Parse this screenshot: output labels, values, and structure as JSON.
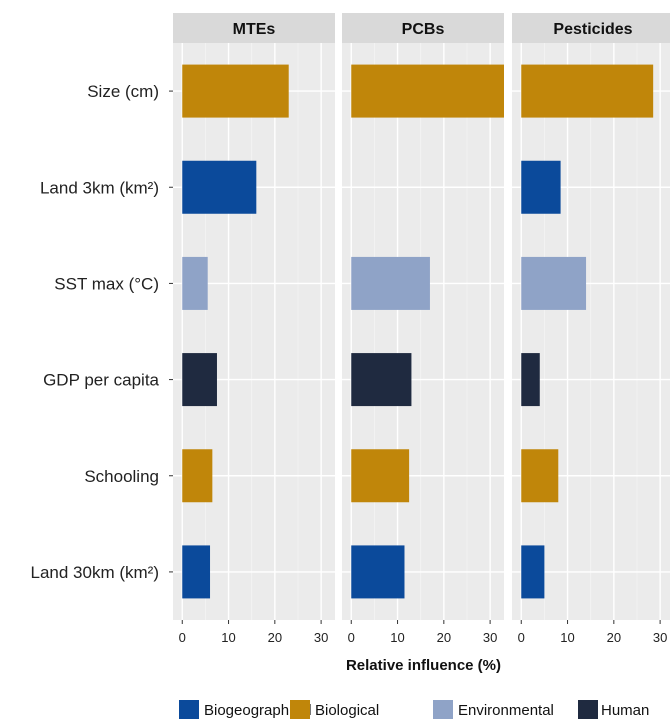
{
  "chart_data": {
    "type": "bar",
    "orientation": "horizontal",
    "facet_layout": "three panels side by side",
    "categories": [
      "Size (cm)",
      "Land 3km (km²)",
      "SST max (°C)",
      "GDP per capita",
      "Schooling",
      "Land 30km (km²)"
    ],
    "category_groups": [
      "Biological",
      "Biogeographical",
      "Environmental",
      "Human",
      "Biological",
      "Biogeographical"
    ],
    "panels": [
      {
        "title": "MTEs",
        "values": [
          23,
          16,
          5.5,
          7.5,
          6.5,
          6
        ]
      },
      {
        "title": "PCBs",
        "values": [
          33,
          0,
          17,
          13,
          12.5,
          11.5
        ]
      },
      {
        "title": "Pesticides",
        "values": [
          28.5,
          8.5,
          14,
          4,
          8,
          5
        ]
      }
    ],
    "xlabel": "Relative influence (%)",
    "ylabel": "",
    "xlim": [
      -2,
      33
    ],
    "xticks": [
      0,
      10,
      20,
      30
    ],
    "grid": true,
    "legend": {
      "placement": "bottom",
      "entries": [
        {
          "label": "Biogeographical",
          "color": "#0b4a9b"
        },
        {
          "label": "Biological",
          "color": "#c0860a"
        },
        {
          "label": "Environmental",
          "color": "#8fa3c7"
        },
        {
          "label": "Human",
          "color": "#1f2a40"
        }
      ]
    }
  }
}
